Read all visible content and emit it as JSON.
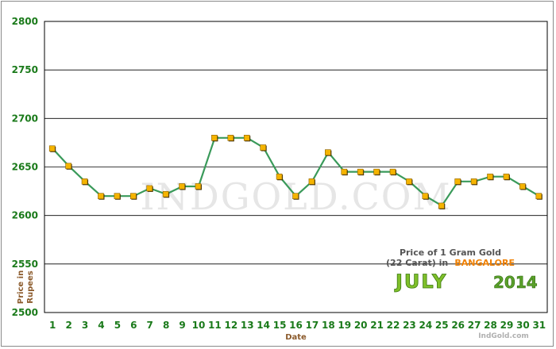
{
  "chart_data": {
    "type": "line",
    "title": "",
    "xlabel": "Date",
    "ylabel": "Price in Rupees",
    "ylim": [
      2500,
      2800
    ],
    "yticks": [
      2500,
      2550,
      2600,
      2650,
      2700,
      2750,
      2800
    ],
    "grid": true,
    "x": [
      "1",
      "2",
      "3",
      "4",
      "5",
      "6",
      "7",
      "8",
      "9",
      "10",
      "11",
      "12",
      "13",
      "14",
      "15",
      "16",
      "17",
      "18",
      "19",
      "20",
      "21",
      "22",
      "23",
      "24",
      "25",
      "26",
      "27",
      "28",
      "29",
      "30",
      "31"
    ],
    "series": [
      {
        "values": [
          2669,
          2651,
          2635,
          2620,
          2620,
          2620,
          2628,
          2622,
          2630,
          2630,
          2680,
          2680,
          2680,
          2670,
          2640,
          2620,
          2635,
          2665,
          2645,
          2645,
          2645,
          2645,
          2635,
          2620,
          2610,
          2635,
          2635,
          2640,
          2640,
          2630,
          2620
        ],
        "line_color": "#3a9a5a",
        "marker_color": "#f5b400"
      }
    ],
    "watermark": "INDGOLD.COM",
    "legend": {
      "line1": "Price of 1 Gram Gold",
      "line2_prefix": "(22 Carat) in",
      "city": "BANGALORE",
      "month": "JULY",
      "year": "2014",
      "credit": "IndGold.com",
      "placement": "bottom-right"
    }
  }
}
